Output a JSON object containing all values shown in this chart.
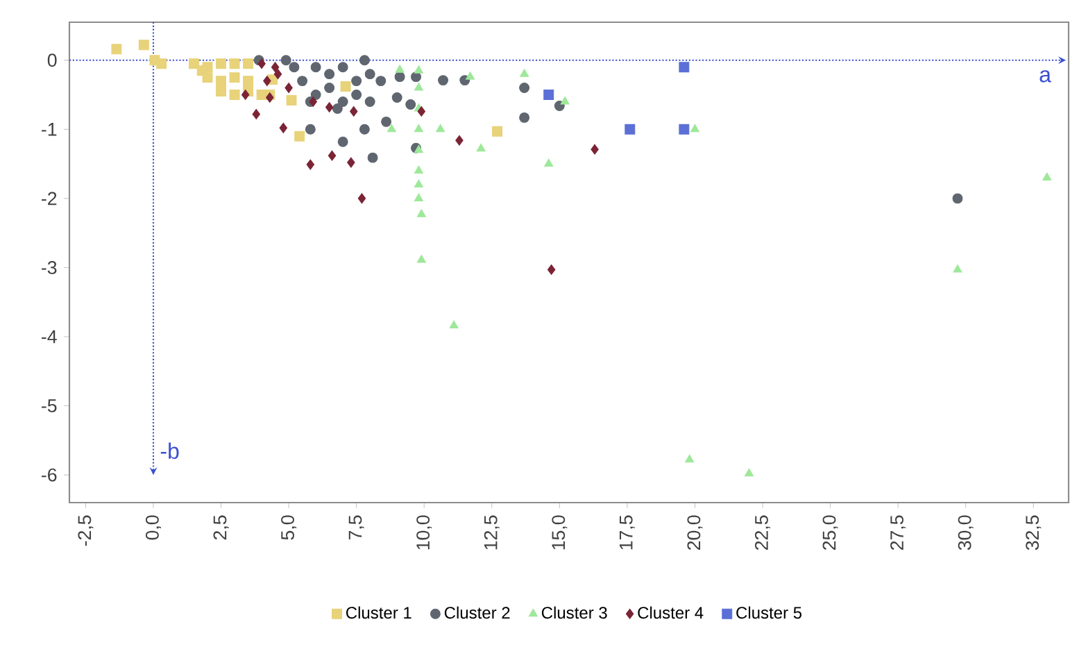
{
  "chart_data": {
    "type": "scatter",
    "xlim": [
      -3.1,
      33.8
    ],
    "ylim": [
      -6.4,
      0.55
    ],
    "xticks": [
      {
        "value": -2.5,
        "label": "-2,5"
      },
      {
        "value": 0,
        "label": "0,0"
      },
      {
        "value": 2.5,
        "label": "2,5"
      },
      {
        "value": 5,
        "label": "5,0"
      },
      {
        "value": 7.5,
        "label": "7,5"
      },
      {
        "value": 10,
        "label": "10,0"
      },
      {
        "value": 12.5,
        "label": "12,5"
      },
      {
        "value": 15,
        "label": "15,0"
      },
      {
        "value": 17.5,
        "label": "17,5"
      },
      {
        "value": 20,
        "label": "20,0"
      },
      {
        "value": 22.5,
        "label": "22,5"
      },
      {
        "value": 25,
        "label": "25,0"
      },
      {
        "value": 27.5,
        "label": "27,5"
      },
      {
        "value": 30,
        "label": "30,0"
      },
      {
        "value": 32.5,
        "label": "32,5"
      }
    ],
    "yticks": [
      0,
      -1,
      -2,
      -3,
      -4,
      -5,
      -6
    ],
    "legend": "bottom",
    "grid": false,
    "ref_lines": [
      {
        "axis": "y",
        "value": 0,
        "label": "a",
        "color": "#3b4fd0",
        "line_style": "dotted"
      },
      {
        "axis": "x",
        "value": 0,
        "label": "-b",
        "color": "#3b4fd0",
        "line_style": "dotted"
      }
    ],
    "series": [
      {
        "name": "Cluster 1",
        "color": "#e8d27a",
        "marker": "square",
        "x": [
          -1.36,
          -0.35,
          0.05,
          0.3,
          1.5,
          2.0,
          2.5,
          3.0,
          3.5,
          1.8,
          2.0,
          2.5,
          3.0,
          3.5,
          2.5,
          3.0,
          3.5,
          4.0,
          4.4,
          4.3,
          5.1,
          5.4,
          7.1,
          12.7
        ],
        "values": [
          0.16,
          0.22,
          0,
          -0.05,
          -0.05,
          -0.1,
          -0.05,
          -0.05,
          -0.05,
          -0.15,
          -0.25,
          -0.3,
          -0.25,
          -0.3,
          -0.45,
          -0.5,
          -0.45,
          -0.5,
          -0.28,
          -0.5,
          -0.58,
          -1.1,
          -0.38,
          -1.03
        ]
      },
      {
        "name": "Cluster 2",
        "color": "#5f6670",
        "marker": "circle",
        "x": [
          3.9,
          4.9,
          5.2,
          5.5,
          6.0,
          6.0,
          6.5,
          6.5,
          7.0,
          7.0,
          7.5,
          7.5,
          8.0,
          8.0,
          5.8,
          6.8,
          7.8,
          5.8,
          7.0,
          7.8,
          8.1,
          8.4,
          8.6,
          9.0,
          9.1,
          9.5,
          9.7,
          9.7,
          10.7,
          11.5,
          13.7,
          13.7,
          15.0,
          29.7
        ],
        "values": [
          0,
          0,
          -0.1,
          -0.3,
          -0.1,
          -0.5,
          -0.2,
          -0.4,
          -0.1,
          -0.6,
          -0.3,
          -0.5,
          -0.2,
          -0.6,
          -0.6,
          -0.7,
          0,
          -1.0,
          -1.18,
          -1.0,
          -1.41,
          -0.3,
          -0.89,
          -0.54,
          -0.24,
          -0.64,
          -0.24,
          -1.27,
          -0.29,
          -0.29,
          -0.4,
          -0.83,
          -0.66,
          -2.0
        ]
      },
      {
        "name": "Cluster 3",
        "color": "#9ee89a",
        "marker": "triangle",
        "x": [
          9.8,
          9.8,
          9.8,
          9.8,
          9.8,
          9.8,
          9.8,
          9.8,
          9.9,
          9.9,
          9.1,
          8.8,
          10.6,
          12.1,
          11.7,
          13.7,
          14.6,
          15.2,
          20.0,
          11.1,
          19.8,
          22.0,
          29.7,
          33.0
        ],
        "values": [
          -0.15,
          -0.4,
          -0.7,
          -1.0,
          -1.3,
          -1.6,
          -1.8,
          -2.0,
          -2.23,
          -2.89,
          -0.14,
          -1.0,
          -1.0,
          -1.28,
          -0.24,
          -0.2,
          -1.5,
          -0.6,
          -1.0,
          -3.84,
          -5.78,
          -5.98,
          -3.03,
          -1.7
        ]
      },
      {
        "name": "Cluster 4",
        "color": "#7b2435",
        "marker": "diamond",
        "x": [
          3.8,
          3.4,
          4.3,
          4.8,
          5.8,
          6.6,
          7.3,
          7.7,
          5.9,
          6.5,
          7.4,
          4.0,
          4.5,
          4.2,
          5.0,
          4.6,
          9.9,
          11.3,
          16.3,
          14.7
        ],
        "values": [
          -0.78,
          -0.5,
          -0.54,
          -0.98,
          -1.51,
          -1.38,
          -1.48,
          -2.0,
          -0.6,
          -0.68,
          -0.74,
          -0.05,
          -0.1,
          -0.3,
          -0.4,
          -0.2,
          -0.74,
          -1.16,
          -1.29,
          -3.03
        ]
      },
      {
        "name": "Cluster 5",
        "color": "#5b6fd6",
        "marker": "square",
        "x": [
          19.6,
          14.6,
          17.6,
          19.6
        ],
        "values": [
          -0.1,
          -0.5,
          -1.0,
          -1.0
        ]
      }
    ]
  }
}
